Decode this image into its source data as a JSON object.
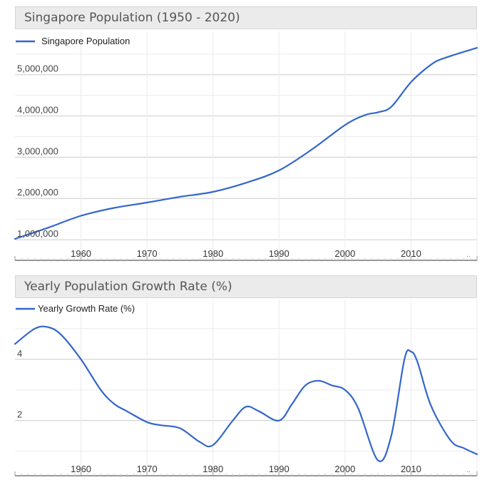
{
  "chart_data": [
    {
      "type": "line",
      "title": "Singapore Population (1950 - 2020)",
      "xlabel": "",
      "ylabel": "",
      "x_tick_labels": [
        "1960",
        "1970",
        "1980",
        "1990",
        "2000",
        "2010"
      ],
      "x_end_label": "..",
      "y_tick_labels": [
        "1,000,000",
        "2,000,000",
        "3,000,000",
        "4,000,000",
        "5,000,000"
      ],
      "y_ticks": [
        1000000,
        2000000,
        3000000,
        4000000,
        5000000
      ],
      "xlim": [
        1950,
        2020
      ],
      "ylim": [
        500000,
        6050000
      ],
      "legend": "top-left",
      "grid": true,
      "series": [
        {
          "name": "Singapore Population",
          "color": "#3366cc",
          "x": [
            1950,
            1955,
            1960,
            1965,
            1970,
            1975,
            1980,
            1985,
            1990,
            1995,
            2000,
            2003,
            2005,
            2007,
            2010,
            2013,
            2015,
            2020
          ],
          "y": [
            1020000,
            1290000,
            1580000,
            1770000,
            1900000,
            2040000,
            2160000,
            2380000,
            2680000,
            3190000,
            3780000,
            4020000,
            4090000,
            4220000,
            4820000,
            5240000,
            5400000,
            5650000
          ]
        }
      ]
    },
    {
      "type": "line",
      "title": "Yearly Population Growth Rate (%)",
      "xlabel": "",
      "ylabel": "",
      "x_tick_labels": [
        "1960",
        "1970",
        "1980",
        "1990",
        "2000",
        "2010"
      ],
      "x_end_label": "..",
      "y_tick_labels": [
        "2",
        "4"
      ],
      "y_ticks": [
        2,
        4
      ],
      "xlim": [
        1950,
        2020
      ],
      "ylim": [
        0.2,
        5.95
      ],
      "legend": "top-left",
      "grid": true,
      "series": [
        {
          "name": "Yearly Growth Rate (%)",
          "color": "#3366cc",
          "x": [
            1950,
            1953,
            1955,
            1957,
            1960,
            1963,
            1965,
            1967,
            1970,
            1972,
            1975,
            1978,
            1980,
            1983,
            1985,
            1987,
            1990,
            1992,
            1994,
            1996,
            1998,
            2000,
            2002,
            2005,
            2007,
            2009,
            2010,
            2011,
            2013,
            2016,
            2018,
            2020
          ],
          "y": [
            4.5,
            5.0,
            5.05,
            4.8,
            4.0,
            3.0,
            2.55,
            2.3,
            1.95,
            1.85,
            1.75,
            1.3,
            1.2,
            2.0,
            2.45,
            2.3,
            2.0,
            2.55,
            3.15,
            3.3,
            3.15,
            3.0,
            2.4,
            0.7,
            1.5,
            4.0,
            4.25,
            3.9,
            2.5,
            1.35,
            1.1,
            0.9
          ]
        }
      ]
    }
  ]
}
